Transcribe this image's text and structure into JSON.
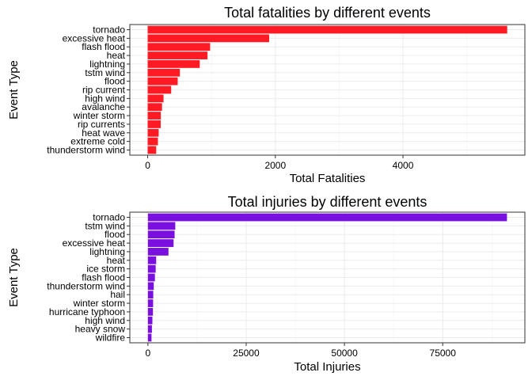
{
  "chart_data": [
    {
      "type": "bar",
      "orientation": "horizontal",
      "title": "Total fatalities by different events",
      "xlabel": "Total Fatalities",
      "ylabel": "Event Type",
      "categories": [
        "tornado",
        "excessive heat",
        "flash flood",
        "heat",
        "lightning",
        "tstm wind",
        "flood",
        "rip current",
        "high wind",
        "avalanche",
        "winter storm",
        "rip currents",
        "heat wave",
        "extreme cold",
        "thunderstorm wind"
      ],
      "values": [
        5633,
        1903,
        978,
        937,
        816,
        504,
        470,
        368,
        248,
        224,
        206,
        204,
        172,
        160,
        133
      ],
      "xlim": [
        -280,
        5910
      ],
      "xticks": [
        0,
        2000,
        4000
      ],
      "xtick_labels": [
        "0",
        "2000",
        "4000"
      ],
      "bar_color": "#ff1a24",
      "grid": true
    },
    {
      "type": "bar",
      "orientation": "horizontal",
      "title": "Total injuries by different events",
      "xlabel": "Total Injuries",
      "ylabel": "Event Type",
      "categories": [
        "tornado",
        "tstm wind",
        "flood",
        "excessive heat",
        "lightning",
        "heat",
        "ice storm",
        "flash flood",
        "thunderstorm wind",
        "hail",
        "winter storm",
        "hurricane typhoon",
        "high wind",
        "heavy snow",
        "wildfire"
      ],
      "values": [
        91346,
        6957,
        6789,
        6525,
        5230,
        2100,
        1975,
        1777,
        1488,
        1361,
        1321,
        1275,
        1137,
        1021,
        911
      ],
      "xlim": [
        -4600,
        95900
      ],
      "xticks": [
        0,
        25000,
        50000,
        75000
      ],
      "xtick_labels": [
        "0",
        "25000",
        "50000",
        "75000"
      ],
      "bar_color": "#7a10e0",
      "grid": true
    }
  ]
}
